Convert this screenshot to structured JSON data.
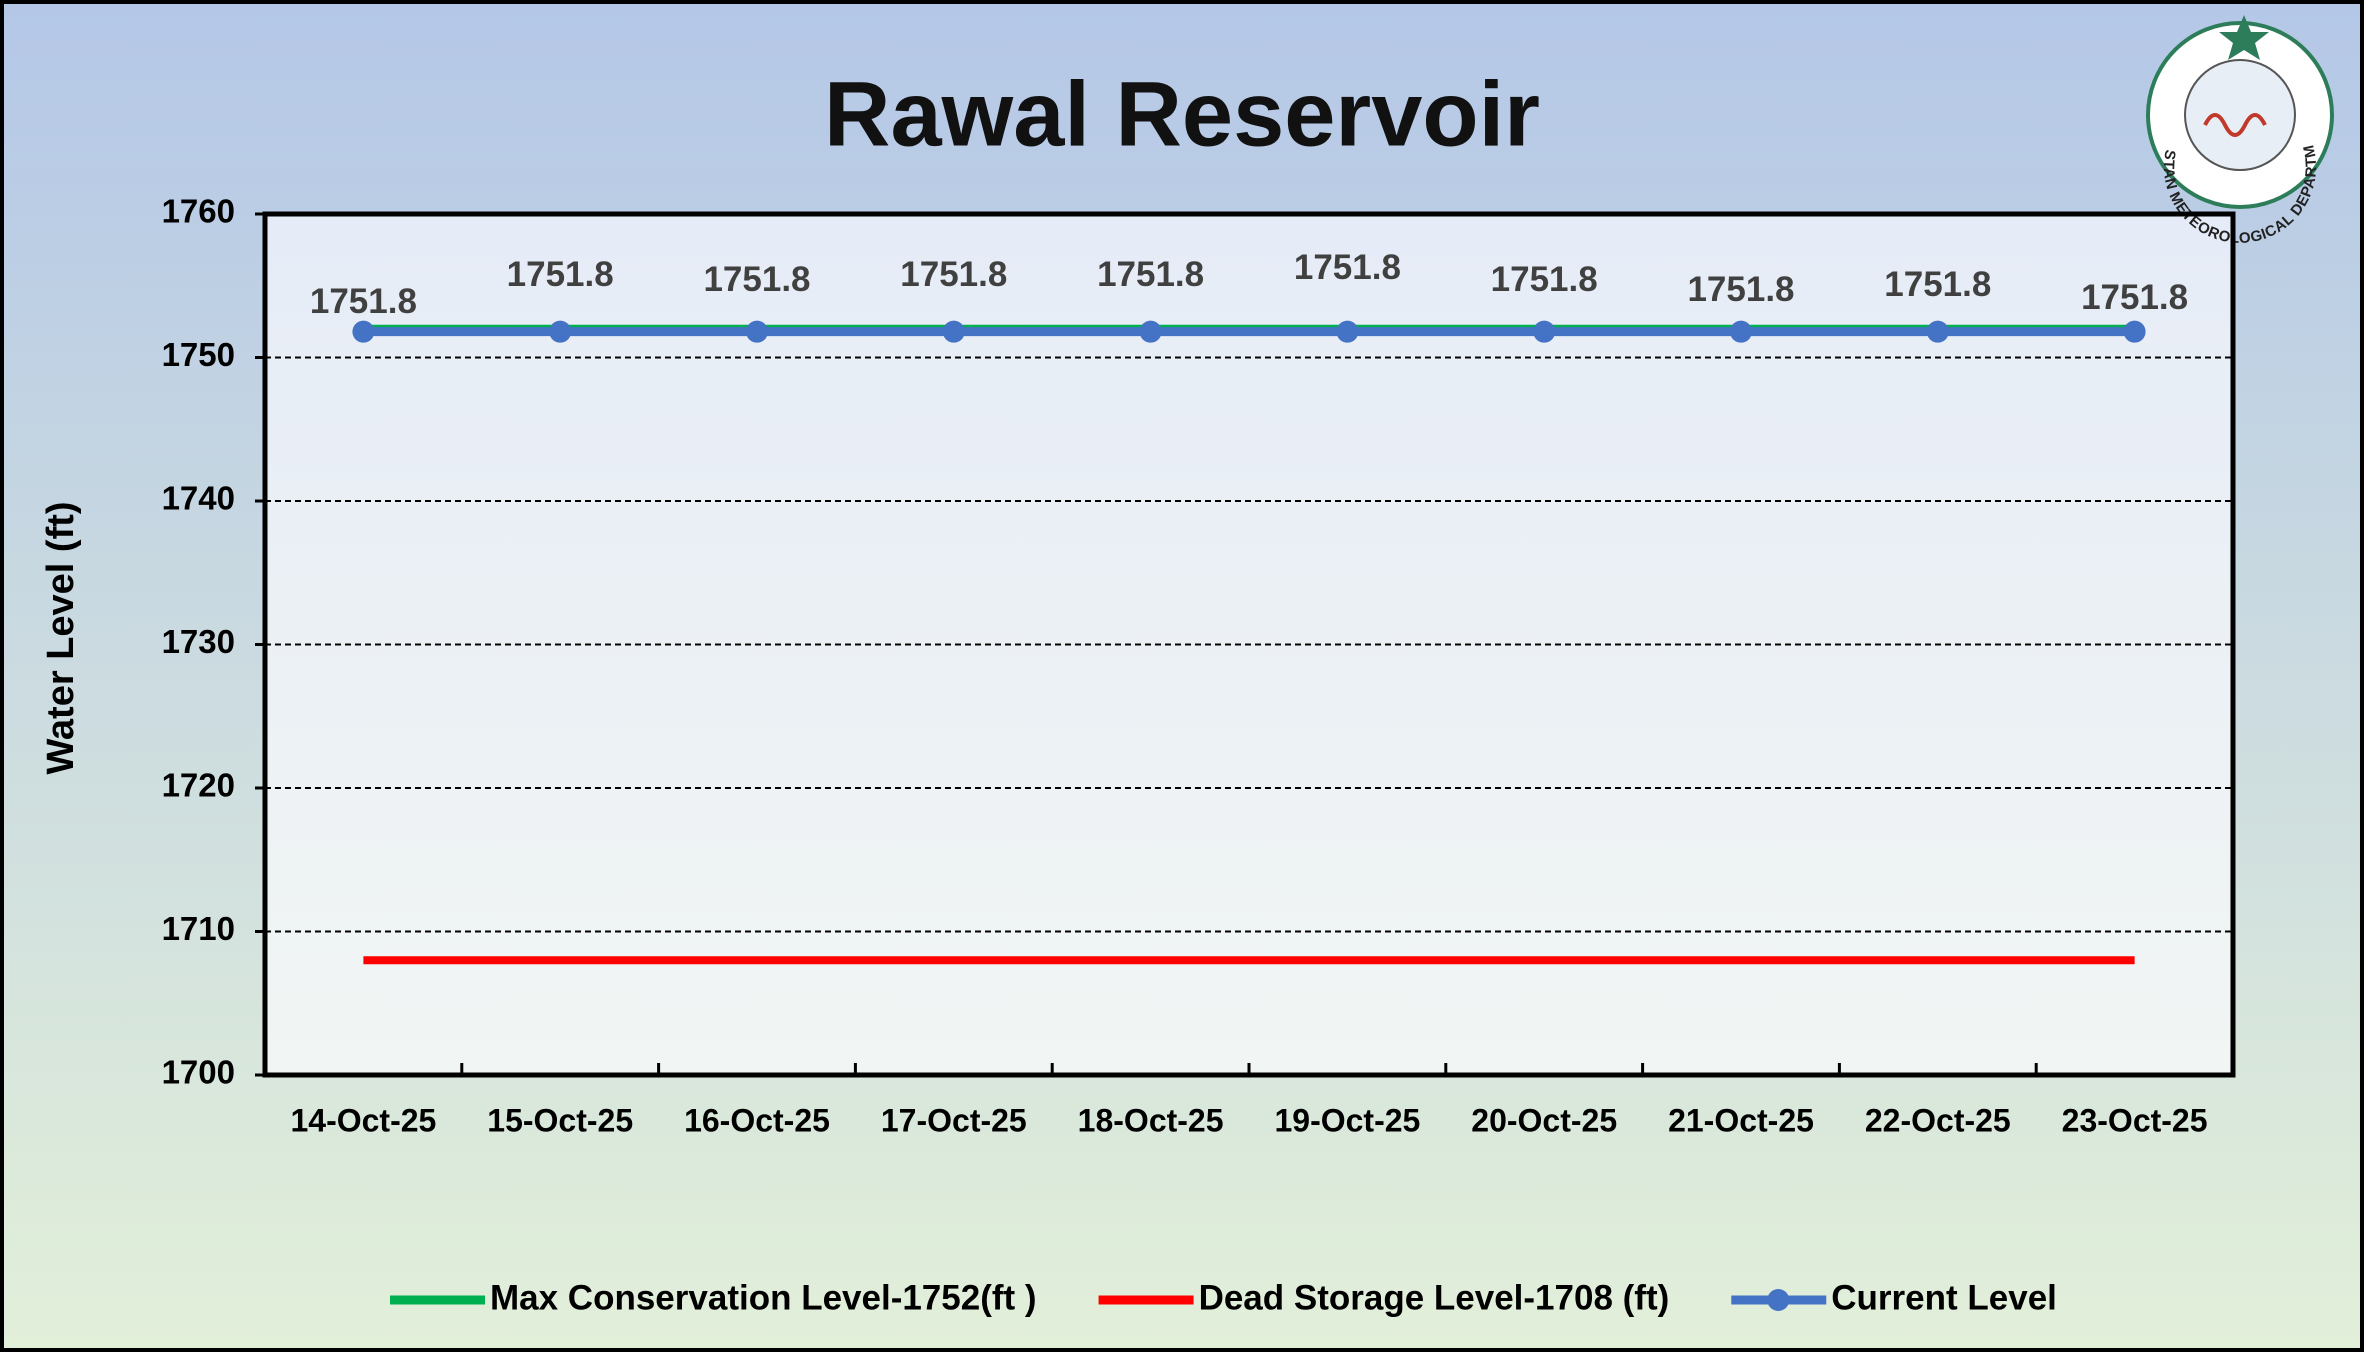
{
  "chart_data": {
    "type": "line",
    "title": "Rawal Reservoir",
    "y_label": "Water Level (ft)",
    "logo_text": "PAKISTAN METEOROLOGICAL DEPARTMENT",
    "categories": [
      "14-Oct-25",
      "15-Oct-25",
      "16-Oct-25",
      "17-Oct-25",
      "18-Oct-25",
      "19-Oct-25",
      "20-Oct-25",
      "21-Oct-25",
      "22-Oct-25",
      "23-Oct-25"
    ],
    "series": [
      {
        "name": "Max Conservation Level-1752(ft )",
        "color": "#00b050",
        "values": [
          1752,
          1752,
          1752,
          1752,
          1752,
          1752,
          1752,
          1752,
          1752,
          1752
        ]
      },
      {
        "name": "Dead Storage Level-1708 (ft)",
        "color": "#ff0000",
        "values": [
          1708,
          1708,
          1708,
          1708,
          1708,
          1708,
          1708,
          1708,
          1708,
          1708
        ]
      },
      {
        "name": "Current Level",
        "color": "#4472c4",
        "markers": true,
        "data_labels": true,
        "values": [
          1751.8,
          1751.8,
          1751.8,
          1751.8,
          1751.8,
          1751.8,
          1751.8,
          1751.8,
          1751.8,
          1751.8
        ]
      }
    ],
    "ylim": [
      1700,
      1760
    ],
    "yticks": [
      1700,
      1710,
      1720,
      1730,
      1740,
      1750,
      1760
    ],
    "grid": true,
    "legend": "bottom"
  }
}
